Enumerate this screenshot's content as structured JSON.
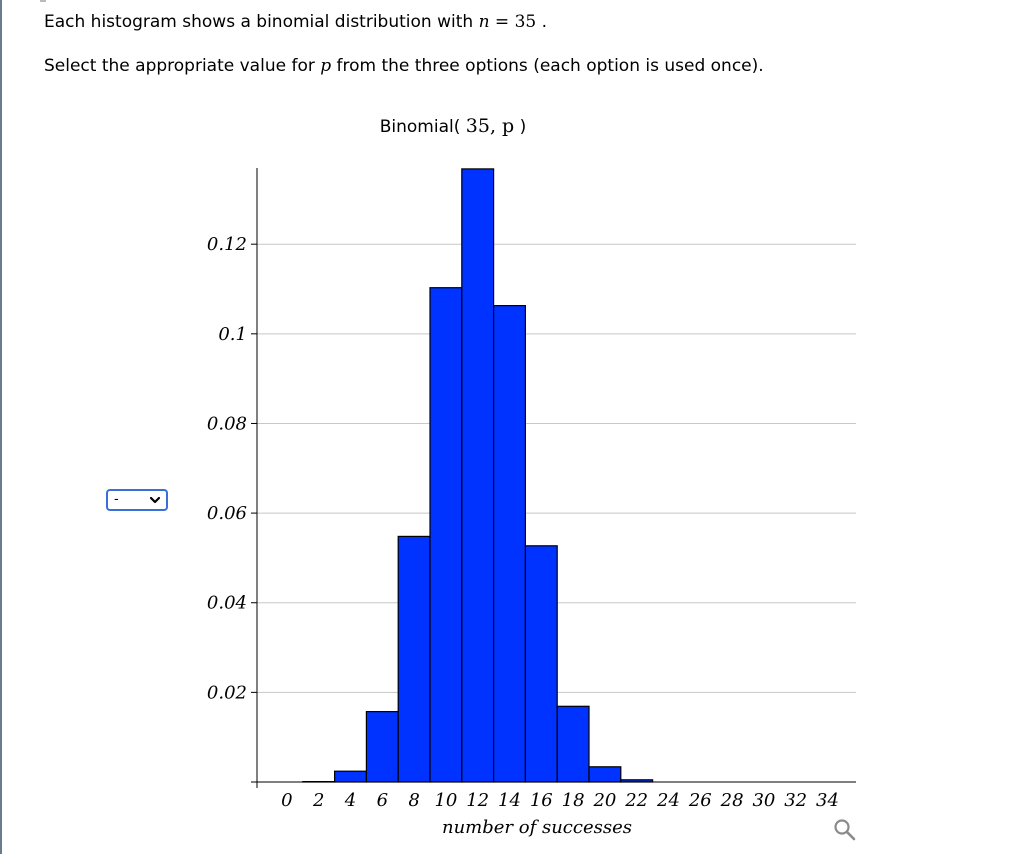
{
  "question": {
    "line1_prefix": "Each histogram shows a binomial distribution with ",
    "line1_var": "n",
    "line1_eq": " = ",
    "line1_num": "35",
    "line1_suffix": " .",
    "line2_prefix": "Select the appropriate value for ",
    "line2_var": "p",
    "line2_suffix": " from the three options (each option is used once)."
  },
  "dropdown": {
    "selected": "-"
  },
  "colors": {
    "bar_fill": "#0033ff",
    "bar_stroke": "#000000",
    "grid": "#c8c8c8",
    "axis": "#000000",
    "dropdown_border": "#3a6fd8"
  },
  "icons": {
    "zoom": "magnifier-icon",
    "dropdown": "chevron-down-icon"
  },
  "chart_data": {
    "type": "bar",
    "title_prefix": "Binomial( ",
    "title_math": "35, p",
    "title_suffix": " )",
    "xlabel": "number of successes",
    "ylabel": "",
    "ylim": [
      0,
      0.137
    ],
    "yticks": [
      0.02,
      0.04,
      0.06,
      0.08,
      0.1,
      0.12
    ],
    "ytick_labels": [
      "0.02",
      "0.04",
      "0.06",
      "0.08",
      "0.1",
      "0.12"
    ],
    "xticks": [
      0,
      2,
      4,
      6,
      8,
      10,
      12,
      14,
      16,
      18,
      20,
      22,
      24,
      26,
      28,
      30,
      32,
      34
    ],
    "xtick_labels": [
      "0",
      "2",
      "4",
      "6",
      "8",
      "10",
      "12",
      "14",
      "16",
      "18",
      "20",
      "22",
      "24",
      "26",
      "28",
      "30",
      "32",
      "34"
    ],
    "grid": true,
    "categories": [
      0,
      2,
      4,
      6,
      8,
      10,
      12,
      14,
      16,
      18,
      20,
      22,
      24,
      26,
      28,
      30,
      32,
      34
    ],
    "values": [
      0.0,
      0.0001,
      0.0024,
      0.0157,
      0.0548,
      0.1103,
      0.1368,
      0.1063,
      0.0527,
      0.0169,
      0.0034,
      0.0005,
      0.0,
      0.0,
      0.0,
      0.0,
      0.0,
      0.0
    ]
  }
}
